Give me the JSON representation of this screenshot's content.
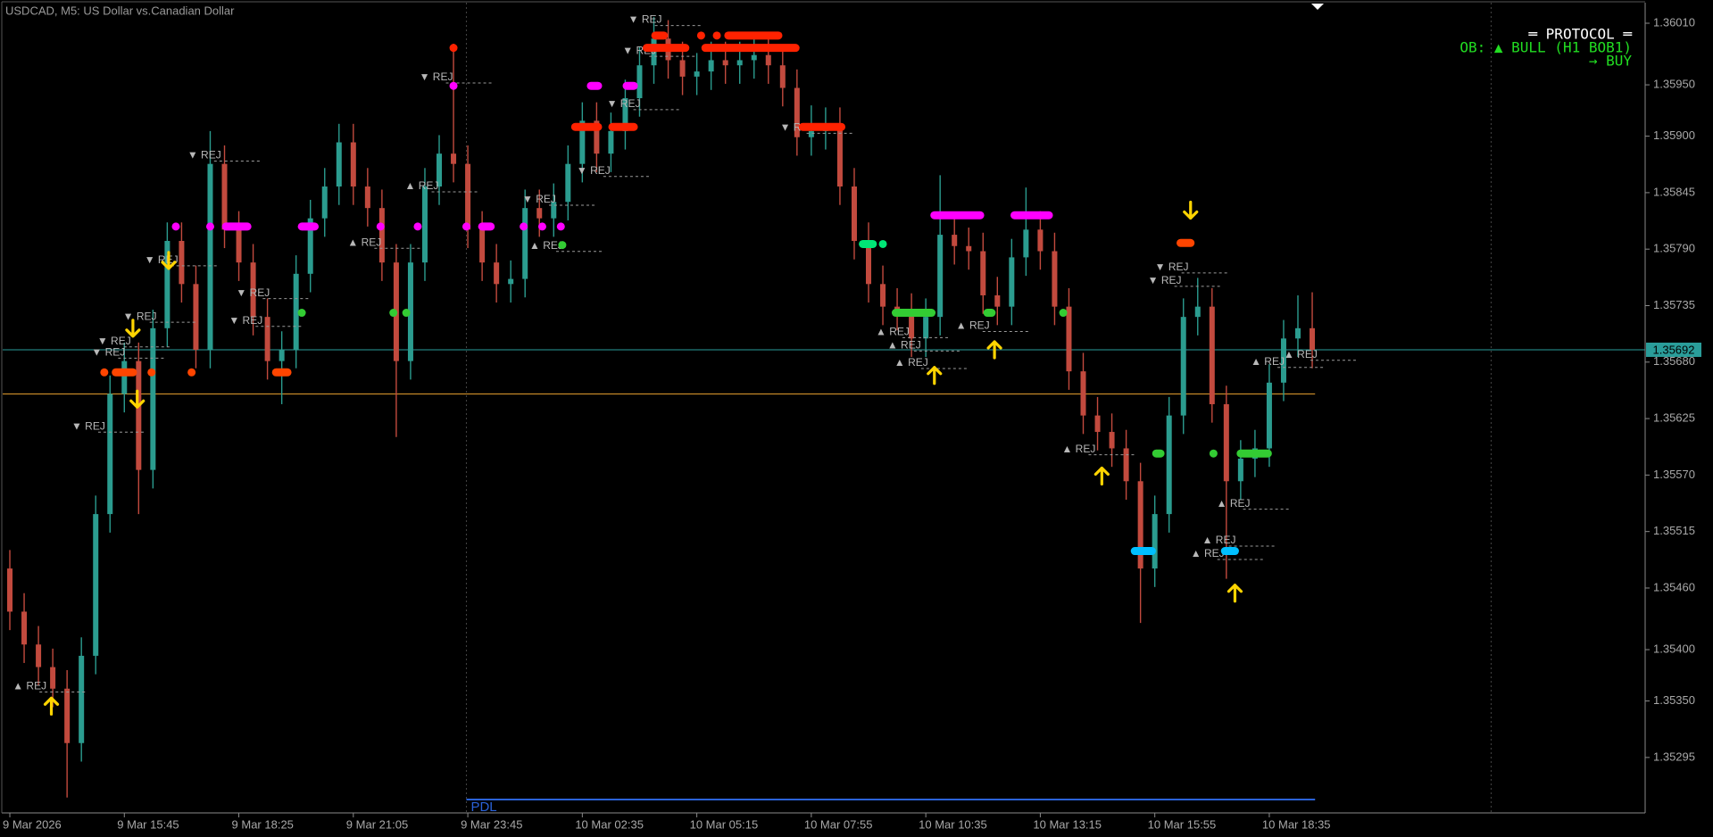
{
  "chart_data": {
    "type": "candlestick",
    "title": "USDCAD, M5:  US Dollar vs.Canadian Dollar",
    "up_color": "#2b9c8f",
    "down_color": "#c24a3e",
    "grid": false,
    "xlim": [
      -0.5,
      114.2
    ],
    "ylim": [
      1.35241,
      1.3603
    ],
    "xticks": [
      {
        "value": 0,
        "label": "9 Mar 2026"
      },
      {
        "value": 8,
        "label": "9 Mar 15:45"
      },
      {
        "value": 16,
        "label": "9 Mar 18:25"
      },
      {
        "value": 24,
        "label": "9 Mar 21:05"
      },
      {
        "value": 32,
        "label": "9 Mar 23:45"
      },
      {
        "value": 40,
        "label": "10 Mar 02:35"
      },
      {
        "value": 48,
        "label": "10 Mar 05:15"
      },
      {
        "value": 56,
        "label": "10 Mar 07:55"
      },
      {
        "value": 64,
        "label": "10 Mar 10:35"
      },
      {
        "value": 72,
        "label": "10 Mar 13:15"
      },
      {
        "value": 80,
        "label": "10 Mar 15:55"
      },
      {
        "value": 88,
        "label": "10 Mar 18:35"
      }
    ],
    "yticks": [
      {
        "value": 1.3601,
        "label": "1.36010"
      },
      {
        "value": 1.3595,
        "label": "1.35950"
      },
      {
        "value": 1.359,
        "label": "1.35900"
      },
      1.35845,
      {
        "value": 1.3579,
        "label": "1.35790"
      },
      1.35735,
      {
        "value": 1.3568,
        "label": "1.35680"
      },
      1.35625,
      {
        "value": 1.3557,
        "label": "1.35570"
      },
      1.35515,
      {
        "value": 1.3546,
        "label": "1.35460"
      },
      {
        "value": 1.354,
        "label": "1.35400"
      },
      {
        "value": 1.3535,
        "label": "1.35350"
      },
      1.35295
    ],
    "open": [
      1.35479,
      1.35437,
      1.35405,
      1.35383,
      1.35362,
      1.35309,
      1.35394,
      1.35532,
      1.35649,
      1.35681,
      1.35575,
      1.35713,
      1.35798,
      1.35756,
      1.35692,
      1.35873,
      1.35809,
      1.35777,
      1.35724,
      1.35681,
      1.35692,
      1.35766,
      1.3582,
      1.35851,
      1.35894,
      1.35851,
      1.3583,
      1.35777,
      1.35681,
      1.35777,
      1.35851,
      1.35883,
      1.35873,
      1.35809,
      1.35777,
      1.35756,
      1.35761,
      1.3583,
      1.3582,
      1.35836,
      1.35873,
      1.35915,
      1.35883,
      1.35905,
      1.35937,
      1.35969,
      1.35995,
      1.35974,
      1.35958,
      1.35963,
      1.35974,
      1.35969,
      1.35974,
      1.35979,
      1.35969,
      1.35947,
      1.35899,
      1.35905,
      1.3591,
      1.35851,
      1.35798,
      1.35756,
      1.35734,
      1.35729,
      1.35703,
      1.35724,
      1.35804,
      1.35793,
      1.35788,
      1.35745,
      1.35734,
      1.35782,
      1.35809,
      1.35788,
      1.35734,
      1.35671,
      1.35628,
      1.35612,
      1.35596,
      1.35564,
      1.35479,
      1.35532,
      1.35628,
      1.35724,
      1.35734,
      1.35639,
      1.35564,
      1.35586,
      1.35596,
      1.3566,
      1.35703,
      1.35713
    ],
    "high": [
      1.35497,
      1.35455,
      1.35423,
      1.35401,
      1.3538,
      1.35412,
      1.3555,
      1.35667,
      1.35699,
      1.35699,
      1.35731,
      1.35816,
      1.35816,
      1.35774,
      1.35905,
      1.35891,
      1.35827,
      1.35795,
      1.35742,
      1.3571,
      1.35784,
      1.35838,
      1.35869,
      1.35912,
      1.35912,
      1.35869,
      1.35848,
      1.35795,
      1.35795,
      1.35869,
      1.35901,
      1.3599,
      1.35891,
      1.35827,
      1.35795,
      1.35779,
      1.35848,
      1.35848,
      1.35854,
      1.35891,
      1.35933,
      1.35933,
      1.35923,
      1.35955,
      1.35987,
      1.36016,
      1.36013,
      1.35992,
      1.35981,
      1.35992,
      1.35992,
      1.35992,
      1.35997,
      1.35997,
      1.35987,
      1.35965,
      1.3593,
      1.35928,
      1.35928,
      1.35869,
      1.35816,
      1.35774,
      1.35752,
      1.35747,
      1.35742,
      1.35862,
      1.35822,
      1.35811,
      1.35806,
      1.35763,
      1.358,
      1.3585,
      1.35827,
      1.35806,
      1.35752,
      1.35689,
      1.35646,
      1.3563,
      1.35614,
      1.35582,
      1.3555,
      1.35646,
      1.35742,
      1.35762,
      1.35752,
      1.35657,
      1.35604,
      1.35614,
      1.35678,
      1.35721,
      1.35745,
      1.35748
    ],
    "low": [
      1.35419,
      1.35387,
      1.35365,
      1.35344,
      1.35256,
      1.35291,
      1.35376,
      1.35514,
      1.35631,
      1.35532,
      1.35557,
      1.35695,
      1.35738,
      1.35674,
      1.35674,
      1.35791,
      1.35759,
      1.35706,
      1.35663,
      1.35639,
      1.35674,
      1.35748,
      1.35802,
      1.35833,
      1.35833,
      1.35812,
      1.35759,
      1.35607,
      1.35663,
      1.35759,
      1.35833,
      1.35855,
      1.35791,
      1.35759,
      1.35738,
      1.35738,
      1.35743,
      1.35802,
      1.35802,
      1.35818,
      1.35855,
      1.35865,
      1.35865,
      1.35887,
      1.35919,
      1.35951,
      1.35956,
      1.3594,
      1.3594,
      1.35945,
      1.35951,
      1.35951,
      1.35956,
      1.35951,
      1.35929,
      1.35881,
      1.35881,
      1.35887,
      1.35833,
      1.3578,
      1.35738,
      1.35716,
      1.35711,
      1.35685,
      1.35685,
      1.35706,
      1.35775,
      1.3577,
      1.35727,
      1.35716,
      1.35716,
      1.35764,
      1.3577,
      1.35716,
      1.35653,
      1.3561,
      1.35594,
      1.35578,
      1.35546,
      1.35426,
      1.35461,
      1.35514,
      1.3561,
      1.35706,
      1.35621,
      1.35469,
      1.35546,
      1.35568,
      1.35578,
      1.35642,
      1.35685,
      1.35674
    ],
    "close": [
      1.35437,
      1.35405,
      1.35383,
      1.35362,
      1.35309,
      1.35394,
      1.35532,
      1.35649,
      1.35681,
      1.35575,
      1.35713,
      1.35798,
      1.35756,
      1.35692,
      1.35873,
      1.35809,
      1.35777,
      1.35724,
      1.35681,
      1.35692,
      1.35766,
      1.3582,
      1.35851,
      1.35894,
      1.35851,
      1.3583,
      1.35777,
      1.35681,
      1.35777,
      1.35851,
      1.35883,
      1.35873,
      1.35809,
      1.35777,
      1.35756,
      1.35761,
      1.3583,
      1.3582,
      1.35836,
      1.35873,
      1.35915,
      1.35883,
      1.35905,
      1.35937,
      1.35969,
      1.35995,
      1.35974,
      1.35958,
      1.35963,
      1.35974,
      1.35969,
      1.35974,
      1.35979,
      1.35969,
      1.35947,
      1.35899,
      1.35905,
      1.3591,
      1.35851,
      1.35798,
      1.35756,
      1.35734,
      1.35729,
      1.35703,
      1.35724,
      1.35804,
      1.35793,
      1.35788,
      1.35745,
      1.35734,
      1.35782,
      1.35809,
      1.35788,
      1.35734,
      1.35671,
      1.35628,
      1.35612,
      1.35596,
      1.35564,
      1.35479,
      1.35532,
      1.35628,
      1.35724,
      1.35734,
      1.35639,
      1.35564,
      1.35586,
      1.35596,
      1.3566,
      1.35703,
      1.35713,
      1.35692
    ],
    "last_price": 1.35692,
    "last_price_color": "#2a9d9a",
    "levels": [
      {
        "value": 1.35649,
        "color": "#e09b2d",
        "x": [
          -0.5,
          91.2
        ]
      }
    ],
    "pdl": {
      "label": "PDL",
      "value": 1.35254,
      "color": "#2a62d8",
      "x": [
        31.9,
        91.2
      ]
    },
    "separators": [
      31.9,
      103.5
    ],
    "signals": [
      {
        "color": "#ff4500",
        "y": 1.3567,
        "spans": [
          [
            6.6,
            6.6
          ],
          [
            7.4,
            8.6
          ],
          [
            9.9,
            9.9
          ],
          [
            12.7,
            12.7
          ],
          [
            18.6,
            19.4
          ]
        ]
      },
      {
        "color": "#ff00ff",
        "y": 1.35812,
        "spans": [
          [
            11.6,
            11.6
          ],
          [
            14.0,
            14.0
          ],
          [
            15.1,
            16.6
          ],
          [
            20.4,
            21.3
          ],
          [
            25.9,
            25.9
          ],
          [
            28.5,
            28.5
          ],
          [
            31.9,
            31.9
          ],
          [
            33.0,
            33.6
          ],
          [
            35.9,
            35.9
          ],
          [
            37.2,
            37.2
          ],
          [
            38.5,
            38.5
          ]
        ]
      },
      {
        "color": "#33cc33",
        "y": 1.35728,
        "spans": [
          [
            20.4,
            20.4
          ],
          [
            26.8,
            26.8
          ],
          [
            27.7,
            27.7
          ],
          [
            61.9,
            64.4
          ],
          [
            68.3,
            68.6
          ],
          [
            73.6,
            73.6
          ]
        ]
      },
      {
        "color": "#33cc33",
        "y": 1.35794,
        "spans": [
          [
            38.6,
            38.6
          ]
        ]
      },
      {
        "color": "#ff2200",
        "y": 1.35986,
        "spans": [
          [
            31.0,
            31.0
          ],
          [
            44.5,
            47.2
          ],
          [
            48.6,
            54.9
          ]
        ]
      },
      {
        "color": "#ff2200",
        "y": 1.35998,
        "spans": [
          [
            45.1,
            45.7
          ],
          [
            48.3,
            48.3
          ],
          [
            49.4,
            49.4
          ],
          [
            50.2,
            53.7
          ]
        ]
      },
      {
        "color": "#ff2200",
        "y": 1.35909,
        "spans": [
          [
            39.5,
            41.1
          ],
          [
            42.1,
            43.6
          ],
          [
            55.4,
            58.1
          ]
        ]
      },
      {
        "color": "#ff00ff",
        "y": 1.35949,
        "spans": [
          [
            31.0,
            31.0
          ],
          [
            40.6,
            41.1
          ],
          [
            43.1,
            43.6
          ]
        ]
      },
      {
        "color": "#00e676",
        "y": 1.35795,
        "spans": [
          [
            59.6,
            60.3
          ],
          [
            61.0,
            61.0
          ]
        ]
      },
      {
        "color": "#ff00ff",
        "y": 1.35823,
        "spans": [
          [
            64.6,
            67.8
          ],
          [
            70.2,
            72.6
          ]
        ]
      },
      {
        "color": "#ff4500",
        "y": 1.35796,
        "spans": [
          [
            81.8,
            82.5
          ]
        ]
      },
      {
        "color": "#33cc33",
        "y": 1.35591,
        "spans": [
          [
            80.1,
            80.4
          ],
          [
            84.1,
            84.1
          ],
          [
            86.0,
            87.9
          ]
        ]
      },
      {
        "color": "#00bfff",
        "y": 1.35496,
        "spans": [
          [
            78.6,
            79.8
          ],
          [
            84.9,
            85.6
          ]
        ]
      }
    ],
    "arrows": [
      {
        "direction": "down",
        "x": 8.6,
        "y": 1.35713
      },
      {
        "direction": "down",
        "x": 8.9,
        "y": 1.35644
      },
      {
        "direction": "down",
        "x": 11.1,
        "y": 1.35779
      },
      {
        "direction": "down",
        "x": 82.5,
        "y": 1.35828
      },
      {
        "direction": "up",
        "x": 2.9,
        "y": 1.35345
      },
      {
        "direction": "up",
        "x": 64.6,
        "y": 1.35667
      },
      {
        "direction": "up",
        "x": 68.8,
        "y": 1.35692
      },
      {
        "direction": "up",
        "x": 76.3,
        "y": 1.35569
      },
      {
        "direction": "up",
        "x": 85.6,
        "y": 1.35455
      }
    ],
    "arrow_color": "#ffd400",
    "rej": [
      {
        "label": "▼ REJ",
        "x": 43.2,
        "y": 1.36013
      },
      {
        "label": "▼ REJ",
        "x": 42.8,
        "y": 1.35983
      },
      {
        "label": "▼ REJ",
        "x": 28.6,
        "y": 1.35957
      },
      {
        "label": "▼ REJ",
        "x": 12.4,
        "y": 1.35881
      },
      {
        "label": "▼ REJ",
        "x": 53.8,
        "y": 1.35908
      },
      {
        "label": "▼ REJ",
        "x": 39.6,
        "y": 1.35866
      },
      {
        "label": "▼ REJ",
        "x": 35.8,
        "y": 1.35838
      },
      {
        "label": "▼ REJ",
        "x": 41.7,
        "y": 1.35931
      },
      {
        "label": "▼ REJ",
        "x": 9.4,
        "y": 1.35779
      },
      {
        "label": "▼ REJ",
        "x": 15.8,
        "y": 1.35747
      },
      {
        "label": "▼ REJ",
        "x": 7.9,
        "y": 1.35724
      },
      {
        "label": "▼ REJ",
        "x": 15.3,
        "y": 1.3572
      },
      {
        "label": "▼ REJ",
        "x": 6.1,
        "y": 1.357
      },
      {
        "label": "▼ REJ",
        "x": 5.7,
        "y": 1.35689
      },
      {
        "label": "▼ REJ",
        "x": 4.3,
        "y": 1.35617
      },
      {
        "label": "▼ REJ",
        "x": 80.0,
        "y": 1.35772
      },
      {
        "label": "▼ REJ",
        "x": 79.5,
        "y": 1.35759
      },
      {
        "label": "▲ REJ",
        "x": 27.6,
        "y": 1.35851
      },
      {
        "label": "▲ REJ",
        "x": 23.6,
        "y": 1.35796
      },
      {
        "label": "▲ REJ",
        "x": 36.3,
        "y": 1.35793
      },
      {
        "label": "▲ REJ",
        "x": 60.5,
        "y": 1.35709
      },
      {
        "label": "▲ REJ",
        "x": 61.3,
        "y": 1.35696
      },
      {
        "label": "▲ REJ",
        "x": 61.8,
        "y": 1.35679
      },
      {
        "label": "▲ REJ",
        "x": 66.1,
        "y": 1.35715
      },
      {
        "label": "▲ REJ",
        "x": 73.5,
        "y": 1.35595
      },
      {
        "label": "▲ REJ",
        "x": 86.7,
        "y": 1.3568
      },
      {
        "label": "▲ REJ",
        "x": 89.0,
        "y": 1.35687
      },
      {
        "label": "▲ REJ",
        "x": 84.3,
        "y": 1.35542
      },
      {
        "label": "▲ REJ",
        "x": 83.3,
        "y": 1.35506
      },
      {
        "label": "▲ REJ",
        "x": 82.5,
        "y": 1.35493
      },
      {
        "label": "▲ REJ",
        "x": 0.2,
        "y": 1.35364
      }
    ],
    "panel": {
      "title": "═ PROTOCOL ═",
      "lines": [
        "OB: ▲ BULL (H1 BOB1)",
        "→ BUY"
      ]
    }
  }
}
